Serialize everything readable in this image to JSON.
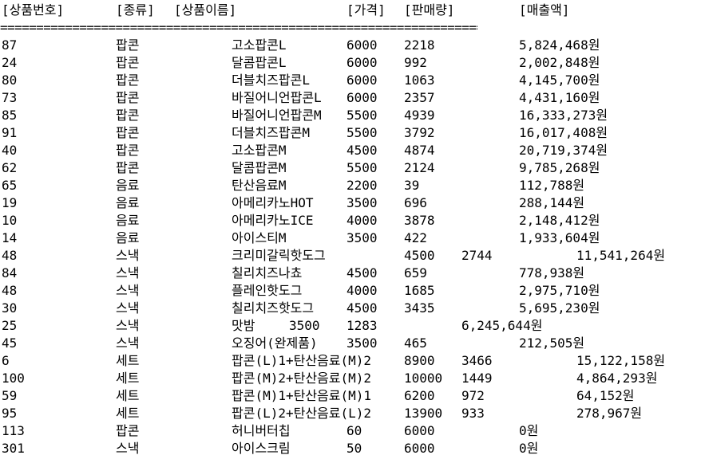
{
  "header": [
    "[상품번호]",
    "[종류]",
    "[상품이름]",
    "[가격]",
    "[판매량]",
    "[매출액]"
  ],
  "separator": "==================================================================================",
  "rows": [
    [
      "87",
      "팝콘",
      "고소팝콘L",
      "6000",
      "2218",
      "5,824,468원"
    ],
    [
      "24",
      "팝콘",
      "달콤팝콘L",
      "6000",
      "992",
      "2,002,848원"
    ],
    [
      "80",
      "팝콘",
      "더블치즈팝콘L",
      "6000",
      "1063",
      "4,145,700원"
    ],
    [
      "73",
      "팝콘",
      "바질어니언팝콘L",
      "6000",
      "2357",
      "4,431,160원"
    ],
    [
      "85",
      "팝콘",
      "바질어니언팝콘M",
      "5500",
      "4939",
      "16,333,273원"
    ],
    [
      "91",
      "팝콘",
      "더블치즈팝콘M",
      "5500",
      "3792",
      "16,017,408원"
    ],
    [
      "40",
      "팝콘",
      "고소팝콘M",
      "4500",
      "4874",
      "20,719,374원"
    ],
    [
      "62",
      "팝콘",
      "달콤팝콘M",
      "5500",
      "2124",
      "9,785,268원"
    ],
    [
      "65",
      "음료",
      "탄산음료M",
      "2200",
      "39",
      "112,788원"
    ],
    [
      "19",
      "음료",
      "아메리카노HOT",
      "3500",
      "696",
      "288,144원"
    ],
    [
      "10",
      "음료",
      "아메리카노ICE",
      "4000",
      "3878",
      "2,148,412원"
    ],
    [
      "14",
      "음료",
      "아이스티M",
      "3500",
      "422",
      "1,933,604원"
    ],
    [
      "48",
      "스낵",
      "크리미갈릭핫도그",
      "4500",
      "2744",
      "11,541,264원"
    ],
    [
      "84",
      "스낵",
      "칠리치즈나쵸",
      "4500",
      "659",
      "778,938원"
    ],
    [
      "48",
      "스낵",
      "플레인핫도그",
      "4000",
      "1685",
      "2,975,710원"
    ],
    [
      "30",
      "스낵",
      "칠리치즈핫도그",
      "4500",
      "3435",
      "5,695,230원"
    ],
    [
      "25",
      "스낵",
      "맛밤",
      "3500",
      "1283",
      "6,245,644원"
    ],
    [
      "45",
      "스낵",
      "오징어(완제품)",
      "3500",
      "465",
      "212,505원"
    ],
    [
      "6",
      "세트",
      "팝콘(L)1+탄산음료(M)2",
      "8900",
      "3466",
      "15,122,158원"
    ],
    [
      "100",
      "세트",
      "팝콘(M)2+탄산음료(M)2",
      "10000",
      "1449",
      "4,864,293원"
    ],
    [
      "59",
      "세트",
      "팝콘(M)1+탄산음료(M)1",
      "6200",
      "972",
      "64,152원"
    ],
    [
      "95",
      "세트",
      "팝콘(L)2+탄산음료(L)2",
      "13900",
      "933",
      "278,967원"
    ],
    [
      "113",
      "팝콘",
      "허니버터칩",
      "60",
      "6000",
      "0원"
    ],
    [
      "301",
      "스낵",
      "아이스크림",
      "50",
      "6000",
      "0원"
    ]
  ]
}
